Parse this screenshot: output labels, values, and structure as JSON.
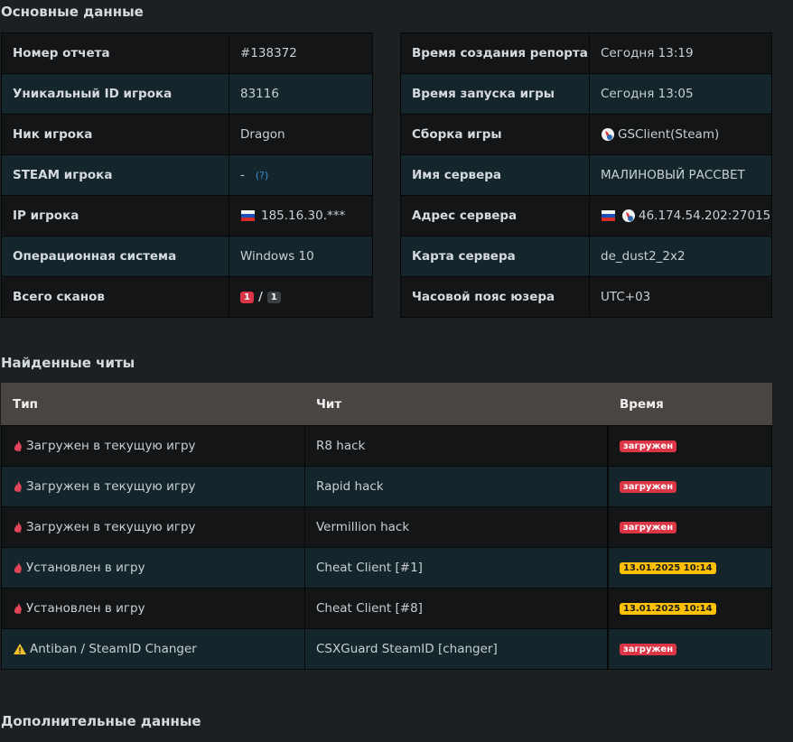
{
  "main": {
    "title": "Основные данные",
    "left": [
      {
        "label": "Номер отчета",
        "value": "#138372"
      },
      {
        "label": "Уникальный ID игрока",
        "value": "83116"
      },
      {
        "label": "Ник игрока",
        "value": "Dragon"
      },
      {
        "label": "STEAM игрока",
        "value": "-",
        "help": "(?)"
      },
      {
        "label": "IP игрока",
        "value": "185.16.30.***",
        "flag": true
      },
      {
        "label": "Операционная система",
        "value": "Windows 10"
      },
      {
        "label": "Всего сканов",
        "badges": [
          {
            "text": "1",
            "color": "#dc3545"
          },
          {
            "text": "1",
            "color": "#3b4045"
          }
        ],
        "separator": "/"
      }
    ],
    "right": [
      {
        "label": "Время создания репорта",
        "value": "Сегодня 13:19"
      },
      {
        "label": "Время запуска игры",
        "value": "Сегодня 13:05"
      },
      {
        "label": "Сборка игры",
        "value": "GSClient(Steam)",
        "client_icon": true
      },
      {
        "label": "Имя сервера",
        "value": "МАЛИНОВЫЙ РАССВЕТ"
      },
      {
        "label": "Адрес сервера",
        "value": "46.174.54.202:27015",
        "flag": true,
        "client_icon": true
      },
      {
        "label": "Карта сервера",
        "value": "de_dust2_2x2"
      },
      {
        "label": "Часовой пояс юзера",
        "value": "UTC+03"
      }
    ]
  },
  "cheats": {
    "title": "Найденные читы",
    "columns": [
      "Тип",
      "Чит",
      "Время"
    ],
    "rows": [
      {
        "icon": "fire",
        "type": "Загружен в текущую игру",
        "cheat": "R8 hack",
        "time": "загружен",
        "badge_color": "#dc3545"
      },
      {
        "icon": "fire",
        "type": "Загружен в текущую игру",
        "cheat": "Rapid hack",
        "time": "загружен",
        "badge_color": "#dc3545"
      },
      {
        "icon": "fire",
        "type": "Загружен в текущую игру",
        "cheat": "Vermillion hack",
        "time": "загружен",
        "badge_color": "#dc3545"
      },
      {
        "icon": "fire",
        "type": "Установлен в игру",
        "cheat": "Cheat Client [#1]",
        "time": "13.01.2025 10:14",
        "badge_color": "#ffc107"
      },
      {
        "icon": "fire",
        "type": "Установлен в игру",
        "cheat": "Cheat Client [#8]",
        "time": "13.01.2025 10:14",
        "badge_color": "#ffc107"
      },
      {
        "icon": "warning",
        "type": "Antiban / SteamID Changer",
        "cheat": "CSXGuard SteamID [changer]",
        "time": "загружен",
        "badge_color": "#dc3545"
      }
    ]
  },
  "extra": {
    "title": "Дополнительные данные"
  }
}
